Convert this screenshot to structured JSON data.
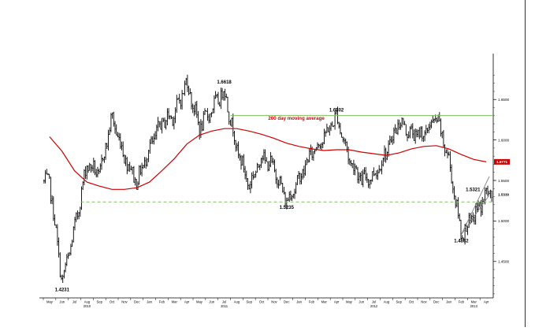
{
  "chart_data": {
    "type": "line",
    "subtype": "daily bar chart (OHLC) with moving average",
    "x_axis": {
      "months": [
        "May",
        "Jun",
        "Jul",
        "Aug",
        "Sep",
        "Oct",
        "Nov",
        "Dec",
        "Jan",
        "Feb",
        "Mar",
        "Apr",
        "May",
        "Jun",
        "Jul",
        "Aug",
        "Sep",
        "Oct",
        "Nov",
        "Dec",
        "Jan",
        "Feb",
        "Mar",
        "Apr",
        "May",
        "Jun",
        "Jul",
        "Aug",
        "Sep",
        "Oct",
        "Nov",
        "Dec",
        "Jan",
        "Feb",
        "Mar",
        "Apr"
      ],
      "years": [
        "2010",
        "2011",
        "2012",
        "2013"
      ]
    },
    "y_axis": {
      "ticks": [
        "1.4500",
        "1.5000",
        "1.5500",
        "1.6000",
        "1.6500"
      ],
      "ylim": [
        1.405,
        1.695
      ],
      "position": "right"
    },
    "price_series": {
      "name": "",
      "color": "#000000",
      "x": [
        "2010-05",
        "2010-06",
        "2010-07",
        "2010-08",
        "2010-09",
        "2010-10",
        "2010-11",
        "2010-12",
        "2011-01",
        "2011-02",
        "2011-03",
        "2011-04",
        "2011-05",
        "2011-06",
        "2011-07",
        "2011-08",
        "2011-09",
        "2011-10",
        "2011-11",
        "2011-12",
        "2012-01",
        "2012-02",
        "2012-03",
        "2012-04",
        "2012-05",
        "2012-06",
        "2012-07",
        "2012-08",
        "2012-09",
        "2012-10",
        "2012-11",
        "2012-12",
        "2013-01",
        "2013-02",
        "2013-03",
        "2013-04"
      ],
      "y": [
        1.548,
        1.4231,
        1.49,
        1.571,
        1.557,
        1.628,
        1.58,
        1.548,
        1.59,
        1.622,
        1.632,
        1.672,
        1.615,
        1.638,
        1.6618,
        1.59,
        1.543,
        1.58,
        1.565,
        1.5235,
        1.551,
        1.585,
        1.603,
        1.6302,
        1.577,
        1.551,
        1.556,
        1.585,
        1.623,
        1.607,
        1.607,
        1.628,
        1.575,
        1.4832,
        1.505,
        1.533
      ]
    },
    "moving_average": {
      "name": "200 day moving average",
      "color": "#d00000",
      "y": [
        1.604,
        1.586,
        1.562,
        1.548,
        1.543,
        1.539,
        1.539,
        1.541,
        1.548,
        1.562,
        1.577,
        1.595,
        1.606,
        1.611,
        1.614,
        1.614,
        1.611,
        1.607,
        1.602,
        1.596,
        1.592,
        1.589,
        1.587,
        1.588,
        1.588,
        1.585,
        1.583,
        1.581,
        1.584,
        1.589,
        1.592,
        1.593,
        1.589,
        1.582,
        1.576,
        1.573
      ]
    },
    "last_value_marker": {
      "label": "1.5771",
      "color": "#d00000"
    },
    "current_price_label": {
      "label": "1.5330"
    },
    "annotations": [
      {
        "text": "1.6618",
        "x": "2011-07",
        "y": 1.6618
      },
      {
        "text": "1.6302",
        "x": "2012-04",
        "y": 1.6302
      },
      {
        "text": "1.5235",
        "x": "2011-12",
        "y": 1.5235
      },
      {
        "text": "1.5321",
        "x": "2013-03",
        "y": 1.5321
      },
      {
        "text": "1.4832",
        "x": "2013-02",
        "y": 1.4832
      },
      {
        "text": "1.4231",
        "x": "2010-06",
        "y": 1.4231
      },
      {
        "text": "200 day moving average",
        "x": "2011-10",
        "y": 1.614,
        "color": "#d00000"
      }
    ],
    "reference_lines": [
      {
        "kind": "resistance",
        "y": 1.6302,
        "color": "#7fbf5f",
        "style": "solid",
        "from": "2011-08",
        "to": "2013-04"
      },
      {
        "kind": "support",
        "y": 1.5235,
        "color": "#7fbf5f",
        "style": "dashed",
        "from": "2010-08",
        "to": "2013-04"
      },
      {
        "kind": "trend",
        "color": "#7f7f7f",
        "style": "solid",
        "from_x": "2013-02",
        "from_y": 1.4832,
        "to_x": "2013-04",
        "to_y": 1.532
      },
      {
        "kind": "trend",
        "color": "#7f7f7f",
        "style": "solid",
        "from_x": "2013-02",
        "from_y": 1.4832,
        "to_x": "2013-04",
        "to_y": 1.555
      }
    ],
    "grid": false,
    "legend": "none"
  }
}
